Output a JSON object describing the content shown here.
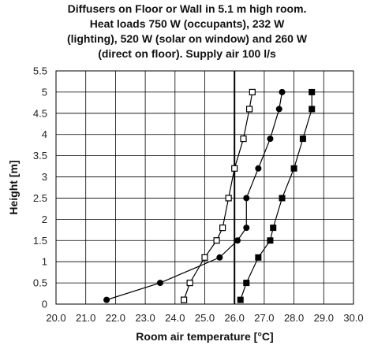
{
  "chart_data": {
    "type": "scatter",
    "title_lines": [
      "Diffusers on Floor or Wall in 5.1 m high room.",
      "Heat loads 750 W (occupants), 232 W",
      "(lighting), 520 W (solar on window) and 260 W",
      "(direct on floor). Supply air 100 l/s"
    ],
    "xlabel": "Room air temperature [°C]",
    "ylabel": "Height [m]",
    "xlim": [
      20.0,
      30.0
    ],
    "ylim": [
      0,
      5.5
    ],
    "xticks": [
      "20.0",
      "21.0",
      "22.0",
      "23.0",
      "24.0",
      "25.0",
      "26.0",
      "27.0",
      "28.0",
      "29.0",
      "30.0"
    ],
    "yticks": [
      "0",
      "0.5",
      "1",
      "1.5",
      "2",
      "2.5",
      "3",
      "3.5",
      "4",
      "4.5",
      "5",
      "5.5"
    ],
    "grid": true,
    "reference_line_x": 26.0,
    "series": [
      {
        "marker": "open-square",
        "color": "#000000",
        "x": [
          24.3,
          24.5,
          25.0,
          25.4,
          25.6,
          25.8,
          26.0,
          26.3,
          26.5,
          26.6
        ],
        "y": [
          0.1,
          0.5,
          1.1,
          1.5,
          1.8,
          2.5,
          3.2,
          3.9,
          4.6,
          5.0
        ]
      },
      {
        "marker": "filled-circle",
        "color": "#000000",
        "x": [
          21.7,
          23.5,
          25.5,
          26.1,
          26.4,
          26.4,
          26.8,
          27.2,
          27.5,
          27.6
        ],
        "y": [
          0.1,
          0.5,
          1.1,
          1.5,
          1.8,
          2.5,
          3.2,
          3.9,
          4.6,
          5.0
        ]
      },
      {
        "marker": "filled-square",
        "color": "#000000",
        "x": [
          26.2,
          26.4,
          26.8,
          27.2,
          27.3,
          27.6,
          28.0,
          28.3,
          28.6,
          28.6
        ],
        "y": [
          0.1,
          0.5,
          1.1,
          1.5,
          1.8,
          2.5,
          3.2,
          3.9,
          4.6,
          5.0
        ]
      }
    ]
  }
}
